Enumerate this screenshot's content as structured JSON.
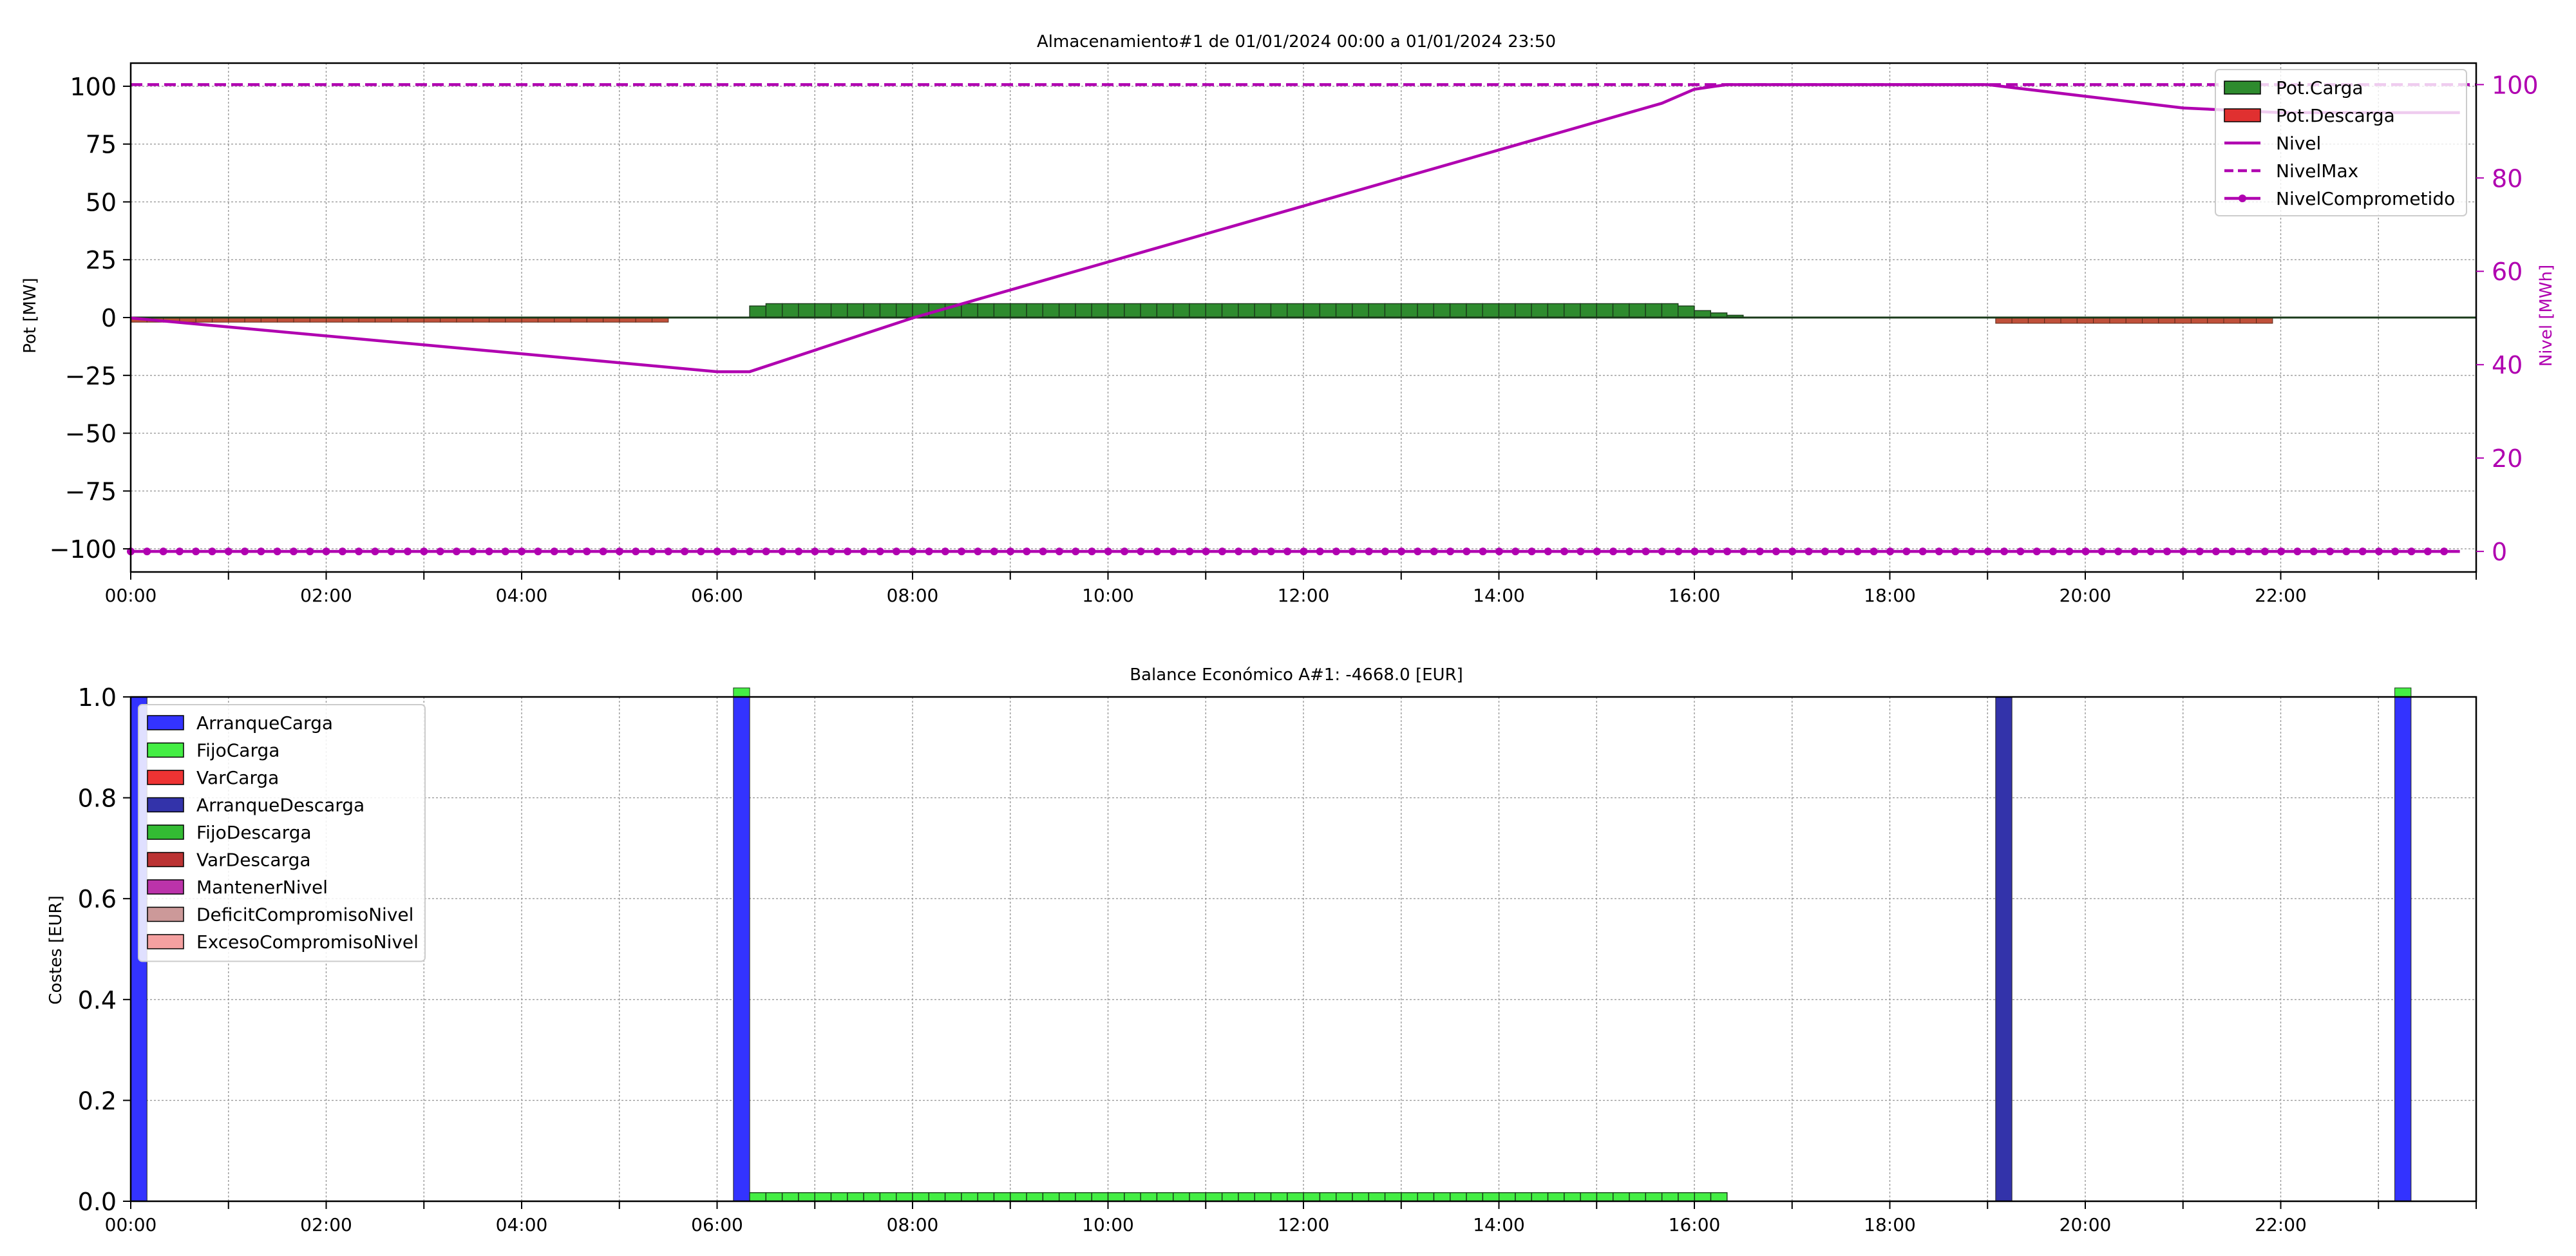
{
  "chart_data": [
    {
      "type": "bar",
      "title": "Almacenamiento#1 de 01/01/2024 00:00 a 01/01/2024 23:50",
      "xlabel": "",
      "ylabel": "Pot [MW]",
      "y2label": "Nivel [MWh]",
      "ylim": [
        -110,
        110
      ],
      "y2lim": [
        -4.4,
        104.6
      ],
      "xlim_hours": [
        0,
        24
      ],
      "x_tick_labels": [
        "00:00",
        "02:00",
        "04:00",
        "06:00",
        "08:00",
        "10:00",
        "12:00",
        "14:00",
        "16:00",
        "18:00",
        "20:00",
        "22:00"
      ],
      "y_tick_labels": [
        "100",
        "75",
        "50",
        "25",
        "0",
        "−25",
        "−50",
        "−75",
        "−100"
      ],
      "y2_tick_labels": [
        "100",
        "80",
        "60",
        "40",
        "20",
        "0"
      ],
      "grid": true,
      "legend_position": "top-right",
      "bar_width_hours": 0.1667,
      "series": [
        {
          "name": "Pot.Carga",
          "kind": "bar",
          "color": "#2e8b2e",
          "note_x": "ten-minute steps, x in hours",
          "x": [
            6.333,
            6.5,
            6.667,
            6.833,
            7.0,
            7.167,
            7.333,
            7.5,
            7.667,
            7.833,
            8.0,
            8.167,
            8.333,
            8.5,
            8.667,
            8.833,
            9.0,
            9.167,
            9.333,
            9.5,
            9.667,
            9.833,
            10.0,
            10.167,
            10.333,
            10.5,
            10.667,
            10.833,
            11.0,
            11.167,
            11.333,
            11.5,
            11.667,
            11.833,
            12.0,
            12.167,
            12.333,
            12.5,
            12.667,
            12.833,
            13.0,
            13.167,
            13.333,
            13.5,
            13.667,
            13.833,
            14.0,
            14.167,
            14.333,
            14.5,
            14.667,
            14.833,
            15.0,
            15.167,
            15.333,
            15.5,
            15.667,
            15.833,
            16.0,
            16.167,
            16.333
          ],
          "values": [
            5,
            6,
            6,
            6,
            6,
            6,
            6,
            6,
            6,
            6,
            6,
            6,
            6,
            6,
            6,
            6,
            6,
            6,
            6,
            6,
            6,
            6,
            6,
            6,
            6,
            6,
            6,
            6,
            6,
            6,
            6,
            6,
            6,
            6,
            6,
            6,
            6,
            6,
            6,
            6,
            6,
            6,
            6,
            6,
            6,
            6,
            6,
            6,
            6,
            6,
            6,
            6,
            6,
            6,
            6,
            6,
            6,
            5,
            3,
            2,
            1
          ]
        },
        {
          "name": "Pot.Descarga",
          "kind": "bar",
          "color": "#e03030",
          "x_ranges": [
            [
              0,
              5.5
            ],
            [
              19.083,
              21.917
            ]
          ],
          "values": [
            -2.0,
            -2.5
          ]
        },
        {
          "name": "Nivel",
          "kind": "line",
          "axis": "right",
          "color": "#b000b0",
          "x": [
            0,
            6.0,
            6.333,
            8.0,
            10.0,
            12.0,
            14.0,
            15.667,
            16.0,
            16.333,
            19.0,
            21.0,
            22.0,
            23.833
          ],
          "values": [
            50,
            38.5,
            38.5,
            50,
            62,
            74,
            86,
            96,
            99,
            100,
            100,
            95,
            94,
            94
          ]
        },
        {
          "name": "NivelMax",
          "kind": "line",
          "axis": "right",
          "style": "dashed",
          "color": "#b000b0",
          "x": [
            0,
            24
          ],
          "values": [
            100,
            100
          ]
        },
        {
          "name": "NivelComprometido",
          "kind": "line-markers",
          "axis": "right",
          "color": "#b000b0",
          "x_range": [
            0,
            23.833
          ],
          "step_hours": 0.1667,
          "value": 0
        }
      ]
    },
    {
      "type": "bar",
      "title": "Balance Económico A#1: -4668.0 [EUR]",
      "xlabel": "",
      "ylabel": "Costes [EUR]",
      "ylim": [
        0,
        1.0
      ],
      "xlim_hours": [
        0,
        24
      ],
      "x_tick_labels": [
        "00:00",
        "02:00",
        "04:00",
        "06:00",
        "08:00",
        "10:00",
        "12:00",
        "14:00",
        "16:00",
        "18:00",
        "20:00",
        "22:00"
      ],
      "y_tick_labels": [
        "1.0",
        "0.8",
        "0.6",
        "0.4",
        "0.2",
        "0.0"
      ],
      "grid": true,
      "legend_position": "top-left",
      "legend": [
        {
          "name": "ArranqueCarga",
          "color": "#3333ff"
        },
        {
          "name": "FijoCarga",
          "color": "#44ee44"
        },
        {
          "name": "VarCarga",
          "color": "#ee3333"
        },
        {
          "name": "ArranqueDescarga",
          "color": "#3333aa"
        },
        {
          "name": "FijoDescarga",
          "color": "#33bb33"
        },
        {
          "name": "VarDescarga",
          "color": "#bb3333"
        },
        {
          "name": "MantenerNivel",
          "color": "#bb33aa"
        },
        {
          "name": "DeficitCompromisoNivel",
          "color": "#cc9999"
        },
        {
          "name": "ExcesoCompromisoNivel",
          "color": "#f4a0a0"
        }
      ],
      "series": [
        {
          "name": "ArranqueCarga",
          "x": [
            0.0,
            6.167,
            23.167
          ],
          "values": [
            1.0,
            1.0,
            1.0
          ]
        },
        {
          "name": "FijoCarga",
          "x_range": [
            6.333,
            16.333
          ],
          "value": 0.017,
          "peak_values_at": [
            6.167,
            23.167
          ],
          "peak_value": 0.017
        },
        {
          "name": "ArranqueDescarga",
          "x": [
            19.083
          ],
          "values": [
            1.0
          ]
        }
      ]
    }
  ]
}
